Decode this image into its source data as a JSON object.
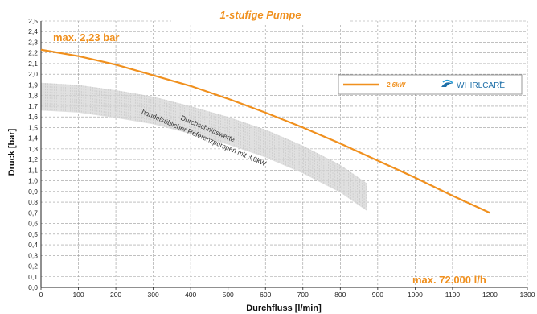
{
  "chart_data": {
    "type": "line",
    "title": "1-stufige Pumpe",
    "xlabel": "Durchfluss [l/min]",
    "ylabel": "Druck [bar]",
    "xlim": [
      0,
      1300
    ],
    "ylim": [
      0,
      2.5
    ],
    "x_ticks": [
      0,
      100,
      200,
      300,
      400,
      500,
      600,
      700,
      800,
      900,
      1000,
      1100,
      1200,
      1300
    ],
    "x_tick_labels": [
      "0",
      "100",
      "200",
      "300",
      "400",
      "500",
      "600",
      "700",
      "800",
      "900",
      "1000",
      "1100",
      "1200",
      "1300"
    ],
    "y_ticks": [
      0,
      0.1,
      0.2,
      0.3,
      0.4,
      0.5,
      0.6,
      0.7,
      0.8,
      0.9,
      1.0,
      1.1,
      1.2,
      1.3,
      1.4,
      1.5,
      1.6,
      1.7,
      1.8,
      1.9,
      2.0,
      2.1,
      2.2,
      2.3,
      2.4,
      2.5
    ],
    "y_tick_labels": [
      "0,0",
      "0,1",
      "0,2",
      "0,3",
      "0,4",
      "0,5",
      "0,6",
      "0,7",
      "0,8",
      "0,9",
      "1,0",
      "1,1",
      "1,2",
      "1,3",
      "1,4",
      "1,5",
      "1,6",
      "1,7",
      "1,8",
      "1,9",
      "2,0",
      "2,1",
      "2,2",
      "2,3",
      "2,4",
      "2,5"
    ],
    "grid": true,
    "series": [
      {
        "name": "2,6kW",
        "color": "#f0901e",
        "x": [
          0,
          100,
          200,
          300,
          400,
          500,
          600,
          700,
          800,
          900,
          1000,
          1100,
          1200
        ],
        "y": [
          2.23,
          2.17,
          2.09,
          1.99,
          1.89,
          1.77,
          1.64,
          1.5,
          1.35,
          1.19,
          1.03,
          0.86,
          0.7
        ]
      }
    ],
    "reference_band": {
      "label_lines": [
        "Durchschnittswerte",
        "handelsüblicher Referenzpumpen mit 3,0kW"
      ],
      "x": [
        0,
        100,
        200,
        300,
        400,
        500,
        600,
        700,
        800,
        870
      ],
      "y_center": [
        1.79,
        1.77,
        1.72,
        1.66,
        1.57,
        1.47,
        1.35,
        1.2,
        1.02,
        0.85
      ],
      "half_height": 0.13,
      "color": "#d6d6d6"
    },
    "annotations": [
      {
        "text": "max. 2,23 bar",
        "position": "top-left",
        "color": "#f0901e"
      },
      {
        "text": "max. 72.000 l/h",
        "position": "bottom-right",
        "color": "#f0901e"
      }
    ],
    "legend": {
      "position": "top-right",
      "brand": "WHIRLCARE",
      "brand_color": "#1e6fa8"
    }
  }
}
